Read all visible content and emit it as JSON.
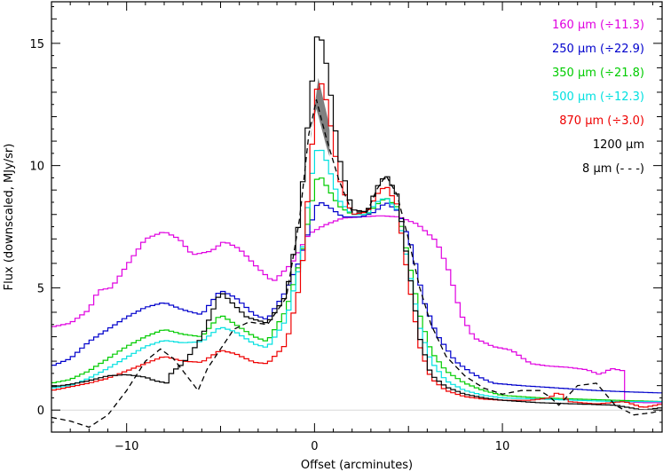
{
  "chart_data": {
    "type": "line",
    "xlabel": "Offset (arcminutes)",
    "ylabel": "Flux (downscaled, MJy/sr)",
    "xlim": [
      -14,
      18.5
    ],
    "ylim": [
      -0.9,
      16.7
    ],
    "xticks": [
      -10,
      0,
      10
    ],
    "yticks": [
      0,
      5,
      10,
      15
    ],
    "grid": false,
    "legend_position": "top-right",
    "series": [
      {
        "name": "160 μm (÷11.3)",
        "color": "#e000e0",
        "style": "step",
        "points": [
          [
            -14,
            3.4
          ],
          [
            -13,
            3.55
          ],
          [
            -12,
            4.1
          ],
          [
            -11.5,
            4.9
          ],
          [
            -10.8,
            5.0
          ],
          [
            -10,
            5.9
          ],
          [
            -9,
            7.0
          ],
          [
            -8,
            7.3
          ],
          [
            -7.2,
            7.0
          ],
          [
            -6.5,
            6.35
          ],
          [
            -5.5,
            6.5
          ],
          [
            -4.8,
            6.9
          ],
          [
            -4,
            6.6
          ],
          [
            -3,
            5.8
          ],
          [
            -2.2,
            5.25
          ],
          [
            -1.2,
            6.0
          ],
          [
            -0.3,
            7.2
          ],
          [
            0.5,
            7.55
          ],
          [
            1.5,
            7.85
          ],
          [
            2.5,
            7.9
          ],
          [
            3.5,
            7.95
          ],
          [
            4.5,
            7.9
          ],
          [
            5.5,
            7.6
          ],
          [
            6.5,
            6.9
          ],
          [
            7.2,
            5.6
          ],
          [
            7.8,
            3.9
          ],
          [
            8.5,
            2.95
          ],
          [
            9.5,
            2.6
          ],
          [
            10.5,
            2.45
          ],
          [
            11.5,
            1.9
          ],
          [
            12.5,
            1.8
          ],
          [
            13.5,
            1.75
          ],
          [
            14.5,
            1.65
          ],
          [
            15.2,
            1.45
          ],
          [
            15.8,
            1.7
          ],
          [
            16.5,
            1.6
          ],
          [
            16.6,
            0.35
          ],
          [
            17.5,
            0.3
          ],
          [
            18.5,
            0.3
          ]
        ]
      },
      {
        "name": "250 μm (÷22.9)",
        "color": "#0000cc",
        "style": "step",
        "points": [
          [
            -14,
            1.8
          ],
          [
            -13,
            2.1
          ],
          [
            -12,
            2.8
          ],
          [
            -11,
            3.3
          ],
          [
            -10,
            3.8
          ],
          [
            -9,
            4.2
          ],
          [
            -8,
            4.4
          ],
          [
            -7,
            4.1
          ],
          [
            -6,
            3.9
          ],
          [
            -5,
            4.9
          ],
          [
            -4.2,
            4.6
          ],
          [
            -3.2,
            3.9
          ],
          [
            -2.5,
            3.7
          ],
          [
            -1.5,
            4.9
          ],
          [
            -0.8,
            6.1
          ],
          [
            -0.2,
            7.6
          ],
          [
            0.2,
            8.55
          ],
          [
            0.8,
            8.3
          ],
          [
            1.5,
            7.9
          ],
          [
            2.5,
            7.9
          ],
          [
            3.2,
            8.1
          ],
          [
            3.8,
            8.5
          ],
          [
            4.5,
            8.1
          ],
          [
            5.2,
            6.6
          ],
          [
            5.8,
            4.5
          ],
          [
            6.5,
            3.1
          ],
          [
            7.5,
            2.0
          ],
          [
            8.5,
            1.45
          ],
          [
            9.5,
            1.1
          ],
          [
            11,
            1.0
          ],
          [
            13,
            0.9
          ],
          [
            15,
            0.8
          ],
          [
            16.5,
            0.75
          ],
          [
            18.5,
            0.7
          ]
        ]
      },
      {
        "name": "350 μm (÷21.8)",
        "color": "#00cc00",
        "style": "step",
        "points": [
          [
            -14,
            1.1
          ],
          [
            -13,
            1.25
          ],
          [
            -12,
            1.6
          ],
          [
            -11,
            2.1
          ],
          [
            -10,
            2.6
          ],
          [
            -9,
            3.0
          ],
          [
            -8,
            3.3
          ],
          [
            -7,
            3.1
          ],
          [
            -6,
            3.0
          ],
          [
            -5,
            3.9
          ],
          [
            -4.2,
            3.5
          ],
          [
            -3.2,
            3.0
          ],
          [
            -2.5,
            2.8
          ],
          [
            -1.5,
            4.1
          ],
          [
            -0.7,
            6.3
          ],
          [
            -0.2,
            8.3
          ],
          [
            0.2,
            9.7
          ],
          [
            0.7,
            9.1
          ],
          [
            1.3,
            8.35
          ],
          [
            2,
            8.0
          ],
          [
            2.8,
            8.0
          ],
          [
            3.3,
            8.4
          ],
          [
            3.8,
            8.7
          ],
          [
            4.4,
            8.3
          ],
          [
            5,
            6.2
          ],
          [
            5.6,
            3.9
          ],
          [
            6.2,
            2.4
          ],
          [
            7,
            1.6
          ],
          [
            8,
            1.1
          ],
          [
            9,
            0.8
          ],
          [
            10,
            0.6
          ],
          [
            12,
            0.5
          ],
          [
            14,
            0.45
          ],
          [
            16,
            0.4
          ],
          [
            18.5,
            0.35
          ]
        ]
      },
      {
        "name": "500 μm (÷12.3)",
        "color": "#00e0e0",
        "style": "step",
        "points": [
          [
            -14,
            0.9
          ],
          [
            -13,
            1.0
          ],
          [
            -12,
            1.3
          ],
          [
            -11,
            1.7
          ],
          [
            -10,
            2.15
          ],
          [
            -9,
            2.6
          ],
          [
            -8,
            2.85
          ],
          [
            -7,
            2.75
          ],
          [
            -6,
            2.8
          ],
          [
            -5,
            3.4
          ],
          [
            -4.2,
            3.2
          ],
          [
            -3.2,
            2.7
          ],
          [
            -2.5,
            2.55
          ],
          [
            -1.5,
            3.7
          ],
          [
            -0.7,
            6.2
          ],
          [
            -0.2,
            9.4
          ],
          [
            0.2,
            10.9
          ],
          [
            0.7,
            10.1
          ],
          [
            1.3,
            8.6
          ],
          [
            2,
            8.0
          ],
          [
            2.8,
            8.0
          ],
          [
            3.3,
            8.5
          ],
          [
            3.8,
            8.7
          ],
          [
            4.4,
            8.2
          ],
          [
            5,
            5.9
          ],
          [
            5.6,
            3.4
          ],
          [
            6.2,
            2.0
          ],
          [
            7,
            1.2
          ],
          [
            8,
            0.8
          ],
          [
            9,
            0.6
          ],
          [
            10,
            0.5
          ],
          [
            12,
            0.45
          ],
          [
            14,
            0.4
          ],
          [
            16,
            0.35
          ],
          [
            18.5,
            0.35
          ]
        ]
      },
      {
        "name": "870 μm (÷3.0)",
        "color": "#ee0000",
        "style": "step",
        "points": [
          [
            -14,
            0.8
          ],
          [
            -13,
            0.95
          ],
          [
            -12,
            1.1
          ],
          [
            -11,
            1.3
          ],
          [
            -10,
            1.6
          ],
          [
            -9,
            1.9
          ],
          [
            -8,
            2.2
          ],
          [
            -7,
            2.0
          ],
          [
            -6,
            1.95
          ],
          [
            -5,
            2.45
          ],
          [
            -4.2,
            2.3
          ],
          [
            -3.2,
            1.95
          ],
          [
            -2.5,
            1.9
          ],
          [
            -1.5,
            2.7
          ],
          [
            -0.7,
            5.4
          ],
          [
            -0.2,
            10.2
          ],
          [
            0.2,
            13.8
          ],
          [
            0.7,
            12.5
          ],
          [
            1.3,
            9.5
          ],
          [
            2,
            8.0
          ],
          [
            2.8,
            8.1
          ],
          [
            3.3,
            8.8
          ],
          [
            3.8,
            9.2
          ],
          [
            4.4,
            8.4
          ],
          [
            5,
            5.3
          ],
          [
            5.6,
            2.6
          ],
          [
            6.2,
            1.3
          ],
          [
            7,
            0.8
          ],
          [
            8,
            0.55
          ],
          [
            9,
            0.45
          ],
          [
            10,
            0.4
          ],
          [
            11.5,
            0.4
          ],
          [
            12.5,
            0.5
          ],
          [
            13,
            0.75
          ],
          [
            13.5,
            0.35
          ],
          [
            15,
            0.25
          ],
          [
            16.5,
            0.35
          ],
          [
            17.5,
            0.1
          ],
          [
            18.5,
            0.25
          ]
        ]
      },
      {
        "name": "1200 μm",
        "color": "#000000",
        "style": "step",
        "points": [
          [
            -14,
            0.95
          ],
          [
            -13,
            1.05
          ],
          [
            -12,
            1.2
          ],
          [
            -11,
            1.4
          ],
          [
            -10,
            1.45
          ],
          [
            -9,
            1.35
          ],
          [
            -8.5,
            1.2
          ],
          [
            -7.8,
            1.1
          ],
          [
            -7.6,
            1.55
          ],
          [
            -7,
            1.9
          ],
          [
            -6.5,
            2.4
          ],
          [
            -6,
            3.0
          ],
          [
            -5.5,
            3.9
          ],
          [
            -5,
            4.85
          ],
          [
            -4.4,
            4.4
          ],
          [
            -3.6,
            3.8
          ],
          [
            -2.5,
            3.55
          ],
          [
            -1.5,
            4.7
          ],
          [
            -0.8,
            7.8
          ],
          [
            -0.3,
            12.2
          ],
          [
            0.2,
            15.8
          ],
          [
            0.7,
            13.9
          ],
          [
            1.3,
            10.4
          ],
          [
            2,
            8.2
          ],
          [
            2.8,
            8.1
          ],
          [
            3.3,
            9.1
          ],
          [
            3.8,
            9.65
          ],
          [
            4.4,
            8.8
          ],
          [
            5,
            5.9
          ],
          [
            5.6,
            2.95
          ],
          [
            6.2,
            1.45
          ],
          [
            7,
            0.95
          ],
          [
            8,
            0.65
          ],
          [
            9,
            0.5
          ],
          [
            10,
            0.4
          ],
          [
            12,
            0.3
          ],
          [
            14,
            0.25
          ],
          [
            16,
            0.2
          ],
          [
            17.5,
            0.0
          ],
          [
            18.5,
            0.1
          ]
        ]
      },
      {
        "name": "8 μm (- - -)",
        "color": "#000000",
        "style": "dashed",
        "points": [
          [
            -14,
            -0.3
          ],
          [
            -13,
            -0.45
          ],
          [
            -12,
            -0.7
          ],
          [
            -11,
            -0.2
          ],
          [
            -10,
            0.8
          ],
          [
            -9,
            2.0
          ],
          [
            -8.2,
            2.5
          ],
          [
            -7.5,
            2.1
          ],
          [
            -6.8,
            1.4
          ],
          [
            -6.2,
            0.8
          ],
          [
            -5.7,
            1.7
          ],
          [
            -5,
            2.5
          ],
          [
            -4.3,
            3.3
          ],
          [
            -3.5,
            3.6
          ],
          [
            -2.5,
            3.5
          ],
          [
            -1.5,
            4.6
          ],
          [
            -0.8,
            7.8
          ],
          [
            -0.3,
            11.3
          ],
          [
            0.1,
            12.7
          ],
          [
            0.6,
            11.2
          ],
          [
            1.3,
            9.4
          ],
          [
            2,
            8.1
          ],
          [
            2.8,
            8.1
          ],
          [
            3.3,
            9.0
          ],
          [
            3.8,
            9.6
          ],
          [
            4.4,
            8.8
          ],
          [
            5,
            7.0
          ],
          [
            5.6,
            5.0
          ],
          [
            6.2,
            3.5
          ],
          [
            7,
            2.2
          ],
          [
            8,
            1.4
          ],
          [
            9,
            0.9
          ],
          [
            10,
            0.65
          ],
          [
            11,
            0.8
          ],
          [
            12,
            0.8
          ],
          [
            12.5,
            0.55
          ],
          [
            13,
            0.2
          ],
          [
            14,
            1.0
          ],
          [
            15,
            1.1
          ],
          [
            16,
            0.2
          ],
          [
            17,
            -0.2
          ],
          [
            18,
            -0.1
          ],
          [
            18.5,
            0.0
          ]
        ]
      }
    ],
    "shaded_region": {
      "x_from": -0.2,
      "x_to": 0.8,
      "upper_series": "1200 μm",
      "lower_series": "8 μm (- - -)",
      "color": "#808080"
    }
  }
}
